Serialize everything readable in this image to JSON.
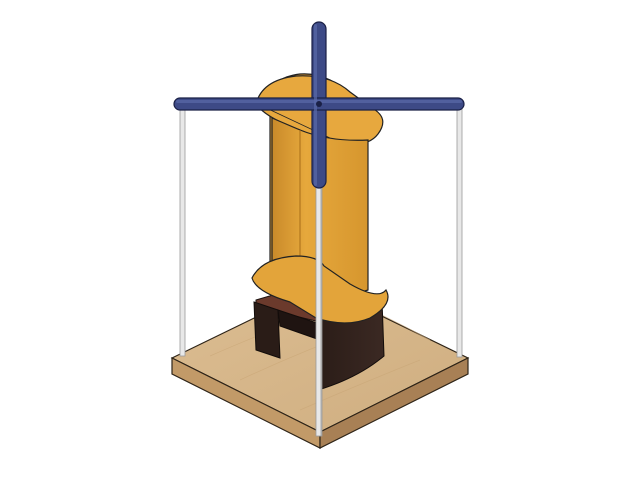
{
  "scene": {
    "subject": "vertical-axis-wind-turbine-model",
    "colors": {
      "background": "#ffffff",
      "wood_top": "#d9b88c",
      "wood_side_left": "#c29a68",
      "wood_side_right": "#a88055",
      "wood_edge": "#2e2418",
      "stand_dark": "#2a1c17",
      "stand_mid": "#3a2822",
      "stand_top": "#6b3a2c",
      "blade_front": "#e3a43a",
      "blade_mid": "#d6962e",
      "blade_shade": "#c48426",
      "blade_top": "#f0b850",
      "crossbar": "#3d4a86",
      "crossbar_light": "#5a69a8",
      "rod": "#e8e8e8",
      "rod_edge": "#9a9a9a",
      "outline": "#222222"
    }
  }
}
